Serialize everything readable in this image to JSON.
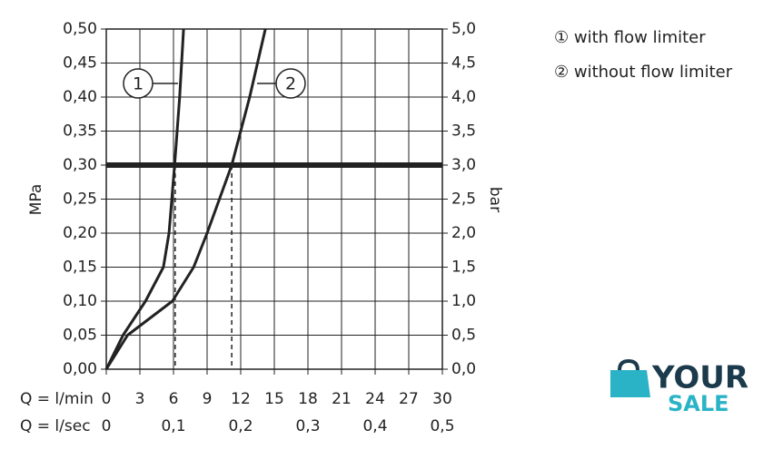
{
  "chart_data": {
    "type": "line",
    "ylabel": "MPa",
    "y2label": "bar",
    "xlabel": "Q = l/min",
    "x2label": "Q = l/sec",
    "xlim": [
      0,
      30
    ],
    "xticks": [
      0,
      3,
      6,
      9,
      12,
      15,
      18,
      21,
      24,
      27,
      30
    ],
    "x2lim": [
      0,
      0.5
    ],
    "x2ticks": [
      {
        "value": 0,
        "label": "0"
      },
      {
        "value": 0.1,
        "label": "0,1"
      },
      {
        "value": 0.2,
        "label": "0,2"
      },
      {
        "value": 0.3,
        "label": "0,3"
      },
      {
        "value": 0.4,
        "label": "0,4"
      },
      {
        "value": 0.5,
        "label": "0,5"
      }
    ],
    "ylim": [
      0,
      0.5
    ],
    "yticks": [
      {
        "value": 0,
        "label": "0,00"
      },
      {
        "value": 0.05,
        "label": "0,05"
      },
      {
        "value": 0.1,
        "label": "0,10"
      },
      {
        "value": 0.15,
        "label": "0,15"
      },
      {
        "value": 0.2,
        "label": "0,20"
      },
      {
        "value": 0.25,
        "label": "0,25"
      },
      {
        "value": 0.3,
        "label": "0,30"
      },
      {
        "value": 0.35,
        "label": "0,35"
      },
      {
        "value": 0.4,
        "label": "0,40"
      },
      {
        "value": 0.45,
        "label": "0,45"
      },
      {
        "value": 0.5,
        "label": "0,50"
      }
    ],
    "y2lim": [
      0,
      5
    ],
    "y2ticks": [
      {
        "value": 0,
        "label": "0,0"
      },
      {
        "value": 0.5,
        "label": "0,5"
      },
      {
        "value": 1,
        "label": "1,0"
      },
      {
        "value": 1.5,
        "label": "1,5"
      },
      {
        "value": 2,
        "label": "2,0"
      },
      {
        "value": 2.5,
        "label": "2,5"
      },
      {
        "value": 3,
        "label": "3,0"
      },
      {
        "value": 3.5,
        "label": "3,5"
      },
      {
        "value": 4,
        "label": "4,0"
      },
      {
        "value": 4.5,
        "label": "4,5"
      },
      {
        "value": 5,
        "label": "5,0"
      }
    ],
    "grid": true,
    "reference_y": 0.3,
    "reference_x": [
      6.15,
      11.2
    ],
    "series": [
      {
        "name": "① with flow limiter",
        "label": "1",
        "color": "#222222",
        "x": [
          0,
          1.5,
          3.5,
          5.1,
          5.6,
          5.85,
          6.1,
          6.55,
          6.9
        ],
        "values": [
          0,
          0.05,
          0.1,
          0.15,
          0.2,
          0.25,
          0.3,
          0.4,
          0.5
        ]
      },
      {
        "name": "② without flow limiter",
        "label": "2",
        "color": "#222222",
        "x": [
          0,
          1.9,
          5.9,
          7.8,
          9.0,
          10.1,
          11.2,
          12.0,
          12.8,
          13.5,
          14.2
        ],
        "values": [
          0,
          0.05,
          0.1,
          0.15,
          0.2,
          0.25,
          0.3,
          0.35,
          0.4,
          0.45,
          0.5
        ]
      }
    ]
  },
  "logo": {
    "line1": "YOUR",
    "line2": "SALE"
  }
}
